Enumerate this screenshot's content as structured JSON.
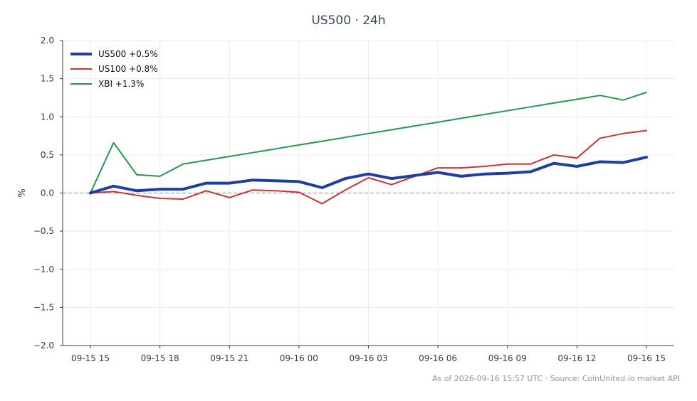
{
  "title": "US500 · 24h",
  "footer": "As of 2026-09-16 15:57 UTC · Source: CoinUnited.io market API",
  "chart_data": {
    "type": "line",
    "title": "US500 · 24h",
    "xlabel": "",
    "ylabel": "%",
    "ylim": [
      -2.0,
      2.0
    ],
    "yticks": [
      -2.0,
      -1.5,
      -1.0,
      -0.5,
      0.0,
      0.5,
      1.0,
      1.5,
      2.0
    ],
    "ytick_labels": [
      "−2.0",
      "−1.5",
      "−1.0",
      "−0.5",
      "0.0",
      "0.5",
      "1.0",
      "1.5",
      "2.0"
    ],
    "x": [
      "09-15 15",
      "09-15 16",
      "09-15 17",
      "09-15 18",
      "09-15 19",
      "09-15 20",
      "09-15 21",
      "09-15 22",
      "09-15 23",
      "09-16 00",
      "09-16 01",
      "09-16 02",
      "09-16 03",
      "09-16 04",
      "09-16 05",
      "09-16 06",
      "09-16 07",
      "09-16 08",
      "09-16 09",
      "09-16 10",
      "09-16 11",
      "09-16 12",
      "09-16 13",
      "09-16 14",
      "09-16 15"
    ],
    "xticks": [
      "09-15 15",
      "09-15 18",
      "09-15 21",
      "09-16 00",
      "09-16 03",
      "09-16 06",
      "09-16 09",
      "09-16 12",
      "09-16 15"
    ],
    "grid": true,
    "zero_line": true,
    "legend": "top-left",
    "series": [
      {
        "name": "US500 +0.5%",
        "color": "#1f3fa0",
        "width": 4,
        "values": [
          0.0,
          0.09,
          0.03,
          0.05,
          0.05,
          0.13,
          0.13,
          0.17,
          0.16,
          0.15,
          0.07,
          0.19,
          0.25,
          0.19,
          0.23,
          0.27,
          0.22,
          0.25,
          0.26,
          0.28,
          0.39,
          0.35,
          0.41,
          0.4,
          0.47
        ]
      },
      {
        "name": "US100 +0.8%",
        "color": "#cc3333",
        "width": 2,
        "values": [
          0.0,
          0.02,
          -0.03,
          -0.07,
          -0.08,
          0.03,
          -0.06,
          0.04,
          0.03,
          0.01,
          -0.14,
          0.04,
          0.2,
          0.11,
          0.22,
          0.33,
          0.33,
          0.35,
          0.38,
          0.38,
          0.5,
          0.46,
          0.72,
          0.78,
          0.82
        ]
      },
      {
        "name": "XBI +1.3%",
        "color": "#22994d",
        "width": 2,
        "values": [
          0.0,
          0.66,
          0.24,
          0.22,
          0.38,
          0.43,
          0.48,
          0.53,
          0.58,
          0.63,
          0.68,
          0.73,
          0.78,
          0.83,
          0.88,
          0.93,
          0.98,
          1.03,
          1.08,
          1.13,
          1.18,
          1.23,
          1.28,
          1.22,
          1.32
        ]
      }
    ]
  }
}
